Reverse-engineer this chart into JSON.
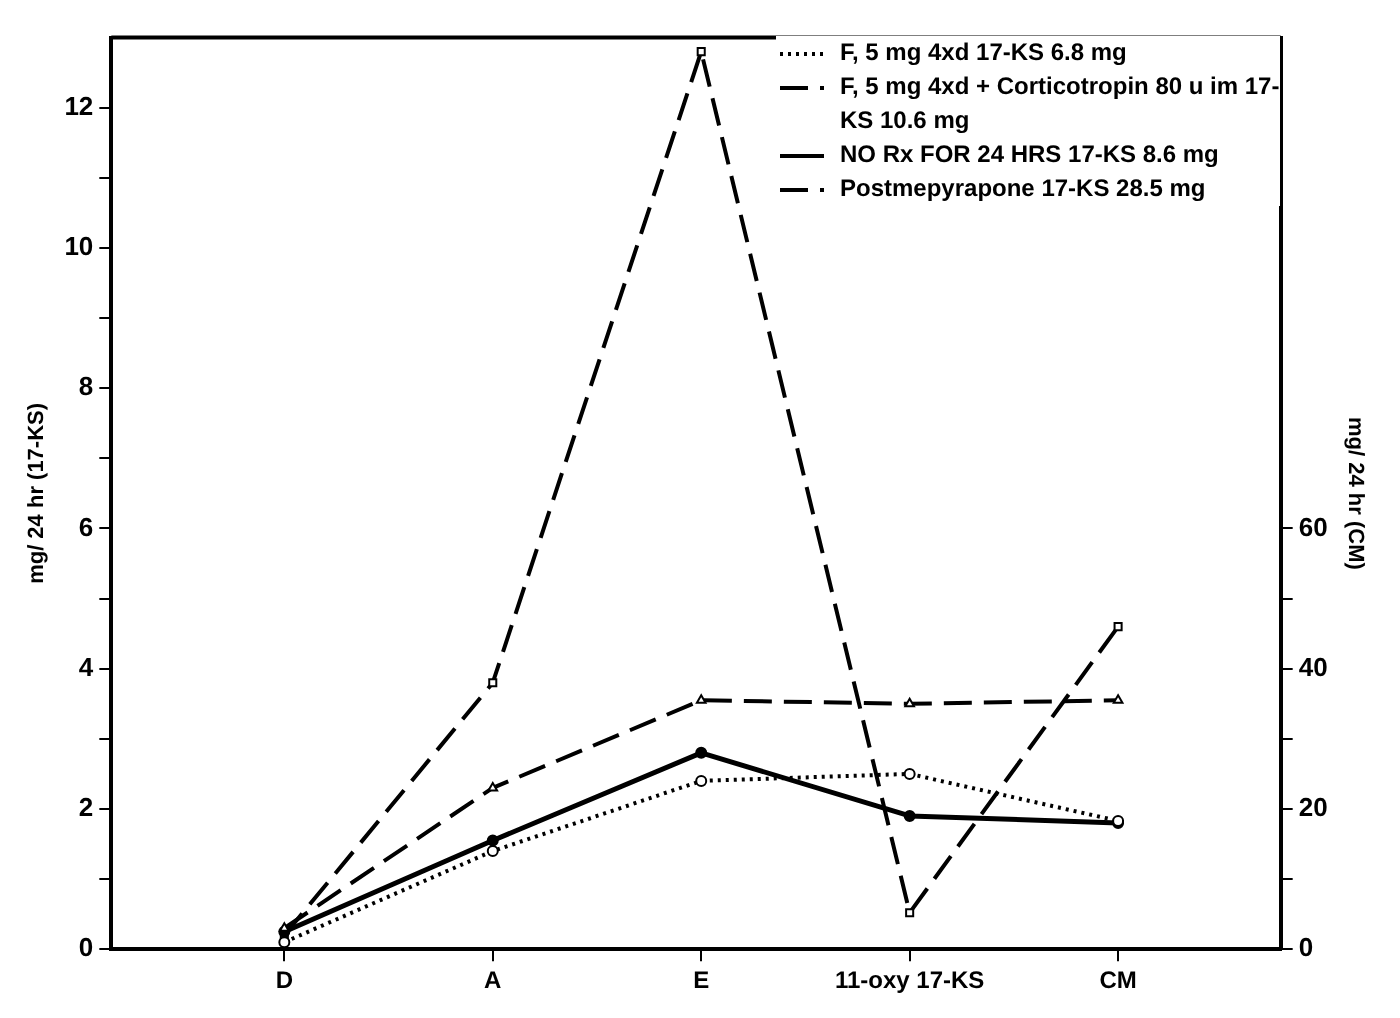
{
  "chart_data": {
    "type": "line",
    "categories": [
      "D",
      "A",
      "E",
      "11-oxy 17-KS",
      "CM"
    ],
    "ylabel": "mg/ 24 hr (17-KS)",
    "y2label": "mg/ 24 hr (CM)",
    "ylim": [
      0,
      13
    ],
    "yticks": [
      0,
      {
        "value": 1,
        "label": null
      },
      2,
      {
        "value": 3,
        "label": null
      },
      4,
      {
        "value": 5,
        "label": null
      },
      6,
      {
        "value": 7,
        "label": null
      },
      8,
      {
        "value": 9,
        "label": null
      },
      10,
      {
        "value": 11,
        "label": null
      },
      12
    ],
    "y2lim": [
      0,
      130
    ],
    "y2ticks": [
      0,
      {
        "value": 10,
        "label": null
      },
      20,
      {
        "value": 30,
        "label": null
      },
      40,
      {
        "value": 50,
        "label": null
      },
      60
    ],
    "grid": false,
    "legend": "top right",
    "series": [
      {
        "name": "F, 5 mg 4xd   17-KS   6.8 mg",
        "color": "#000000",
        "line_style": "dotted",
        "marker": "circle",
        "values": [
          0.1,
          1.4,
          2.4,
          2.5,
          1.83
        ]
      },
      {
        "name": "F, 5 mg 4xd + Corticotropin 80 u im 17-KS   10.6 mg",
        "color": "#000000",
        "line_style": "dashed",
        "marker": "triangle",
        "values": [
          0.3,
          2.3,
          3.55,
          3.5,
          3.55
        ]
      },
      {
        "name": "NO Rx FOR 24 HRS 17-KS 8.6 mg",
        "color": "#000000",
        "line_style": "solid",
        "marker": "circle",
        "values": [
          0.25,
          1.55,
          2.8,
          1.9,
          1.8
        ]
      },
      {
        "name": "Postmepyrapone  17-KS  28.5 mg",
        "color": "#000000",
        "line_style": "dashed",
        "marker": "square",
        "values": [
          0.2,
          3.8,
          12.8,
          0.52,
          4.6
        ]
      }
    ]
  }
}
